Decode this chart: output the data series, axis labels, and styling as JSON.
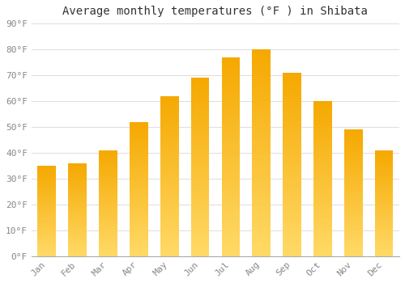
{
  "title": "Average monthly temperatures (°F ) in Shibata",
  "months": [
    "Jan",
    "Feb",
    "Mar",
    "Apr",
    "May",
    "Jun",
    "Jul",
    "Aug",
    "Sep",
    "Oct",
    "Nov",
    "Dec"
  ],
  "values": [
    35,
    36,
    41,
    52,
    62,
    69,
    77,
    80,
    71,
    60,
    49,
    41
  ],
  "bar_color_top": "#F5A800",
  "bar_color_bottom": "#FFD966",
  "ylim": [
    0,
    90
  ],
  "yticks": [
    0,
    10,
    20,
    30,
    40,
    50,
    60,
    70,
    80,
    90
  ],
  "ytick_labels": [
    "0°F",
    "10°F",
    "20°F",
    "30°F",
    "40°F",
    "50°F",
    "60°F",
    "70°F",
    "80°F",
    "90°F"
  ],
  "grid_color": "#dddddd",
  "background_color": "#ffffff",
  "title_fontsize": 10,
  "tick_fontsize": 8,
  "bar_width": 0.6
}
